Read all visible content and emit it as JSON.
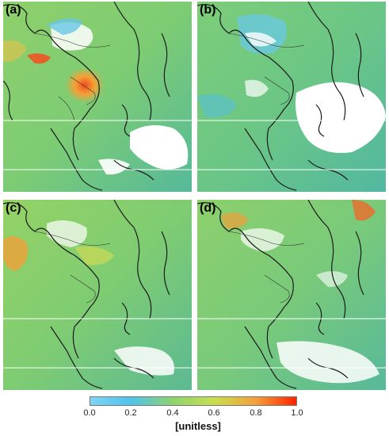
{
  "panels": [
    {
      "label": "(a)"
    },
    {
      "label": "(b)"
    },
    {
      "label": "(c)"
    },
    {
      "label": "(d)"
    }
  ],
  "colorbar": {
    "ticks": [
      "0.0",
      "0.2",
      "0.4",
      "0.6",
      "0.8",
      "1.0"
    ],
    "unit_label": "[unitless]",
    "colors": [
      "#7fd4f5",
      "#4fc3ea",
      "#8fd36f",
      "#c7e04e",
      "#f4a23a",
      "#ff2200"
    ]
  },
  "colors": {
    "ocean_base": "#62bf8a",
    "land_base": "#9cd15a",
    "coast": "#1a1a1a",
    "missing": "#ffffff"
  }
}
